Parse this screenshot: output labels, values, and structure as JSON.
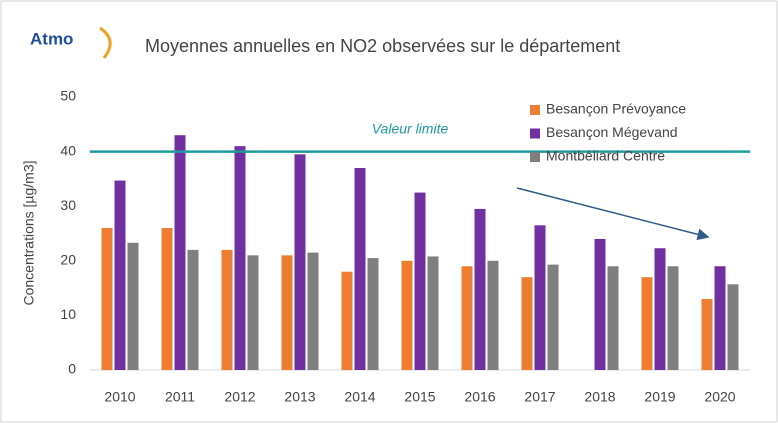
{
  "chart_data": {
    "type": "bar",
    "logo": "Atmo",
    "title": "Moyennes annuelles en NO2 observées sur le département",
    "y_label": "Concentrations [µg/m3]",
    "categories": [
      "2010",
      "2011",
      "2012",
      "2013",
      "2014",
      "2015",
      "2016",
      "2017",
      "2018",
      "2019",
      "2020"
    ],
    "series": [
      {
        "name": "Besançon Prévoyance",
        "color": "#ed7d31",
        "values": [
          26,
          26,
          22,
          21,
          18,
          20,
          19,
          17,
          null,
          17,
          13
        ]
      },
      {
        "name": "Besançon Mégevand",
        "color": "#7030a0",
        "values": [
          34.7,
          43,
          41,
          39.5,
          37,
          32.5,
          29.5,
          26.5,
          24,
          22.3,
          19
        ]
      },
      {
        "name": "Montbéliard Centre",
        "color": "#7f7f7f",
        "values": [
          23.3,
          22,
          21,
          21.5,
          20.5,
          20.8,
          20,
          19.3,
          19,
          19,
          15.7
        ]
      }
    ],
    "ylim": [
      0,
      50
    ],
    "yticks": [
      0,
      10,
      20,
      30,
      40,
      50
    ],
    "grid": false,
    "reference_line": {
      "value": 40,
      "label": "Valeur limite",
      "color": "#1f9a9c"
    },
    "legend": "top-right"
  }
}
